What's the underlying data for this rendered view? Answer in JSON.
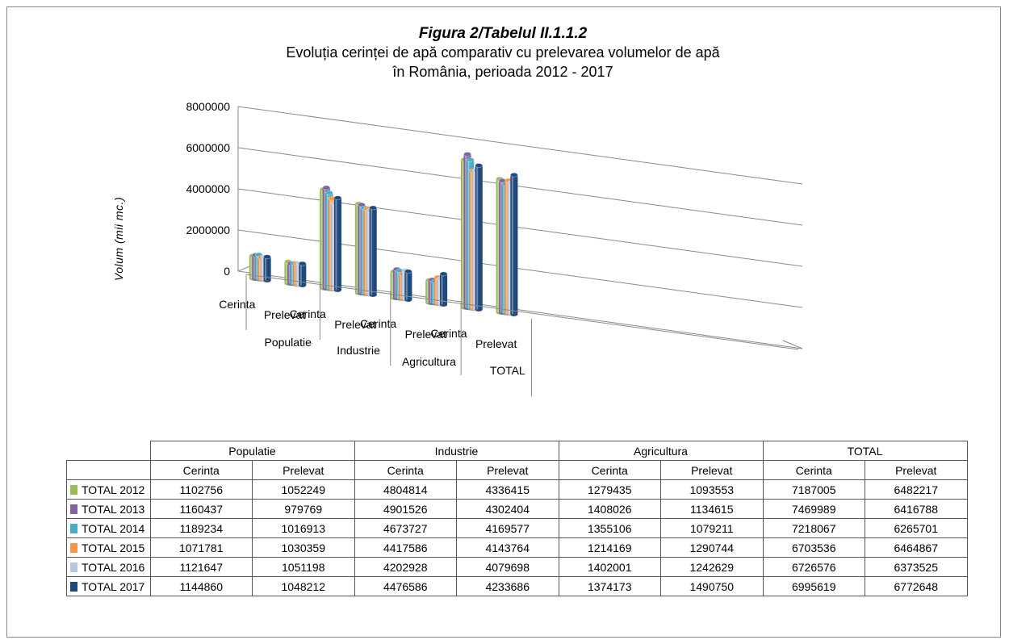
{
  "chart_data": {
    "type": "bar",
    "title": "Figura 2/Tabelul II.1.1.2",
    "subtitle_line1": "Evoluția cerinței de apă comparativ cu prelevarea volumelor de apă",
    "subtitle_line2": "în România, perioada 2012 - 2017",
    "ylabel": "Volum (mii mc.)",
    "ylim": [
      0,
      8000000
    ],
    "yticks": [
      "0",
      "2000000",
      "4000000",
      "6000000",
      "8000000"
    ],
    "groups": [
      {
        "name": "Populatie",
        "subs": [
          "Cerinta",
          "Prelevat"
        ]
      },
      {
        "name": "Industrie",
        "subs": [
          "Cerinta",
          "Prelevat"
        ]
      },
      {
        "name": "Agricultura",
        "subs": [
          "Cerinta",
          "Prelevat"
        ]
      },
      {
        "name": "TOTAL",
        "subs": [
          "Cerinta",
          "Prelevat"
        ]
      }
    ],
    "series": [
      {
        "name": "TOTAL 2012",
        "color": "#9BBB59",
        "values": [
          1102756,
          1052249,
          4804814,
          4336415,
          1279435,
          1093553,
          7187005,
          6482217
        ]
      },
      {
        "name": "TOTAL 2013",
        "color": "#8064A2",
        "values": [
          1160437,
          979769,
          4901526,
          4302404,
          1408026,
          1134615,
          7469989,
          6416788
        ]
      },
      {
        "name": "TOTAL 2014",
        "color": "#4BACC6",
        "values": [
          1189234,
          1016913,
          4673727,
          4169577,
          1355106,
          1079211,
          7218067,
          6265701
        ]
      },
      {
        "name": "TOTAL 2015",
        "color": "#F79646",
        "values": [
          1071781,
          1030359,
          4417586,
          4143764,
          1214169,
          1290744,
          6703536,
          6464867
        ]
      },
      {
        "name": "TOTAL 2016",
        "color": "#B9C6E3",
        "values": [
          1121647,
          1051198,
          4202928,
          4079698,
          1402001,
          1242629,
          6726576,
          6373525
        ]
      },
      {
        "name": "TOTAL 2017",
        "color": "#1F497D",
        "values": [
          1144860,
          1048212,
          4476586,
          4233686,
          1374173,
          1490750,
          6995619,
          6772648
        ]
      }
    ],
    "legend": "table-left"
  }
}
